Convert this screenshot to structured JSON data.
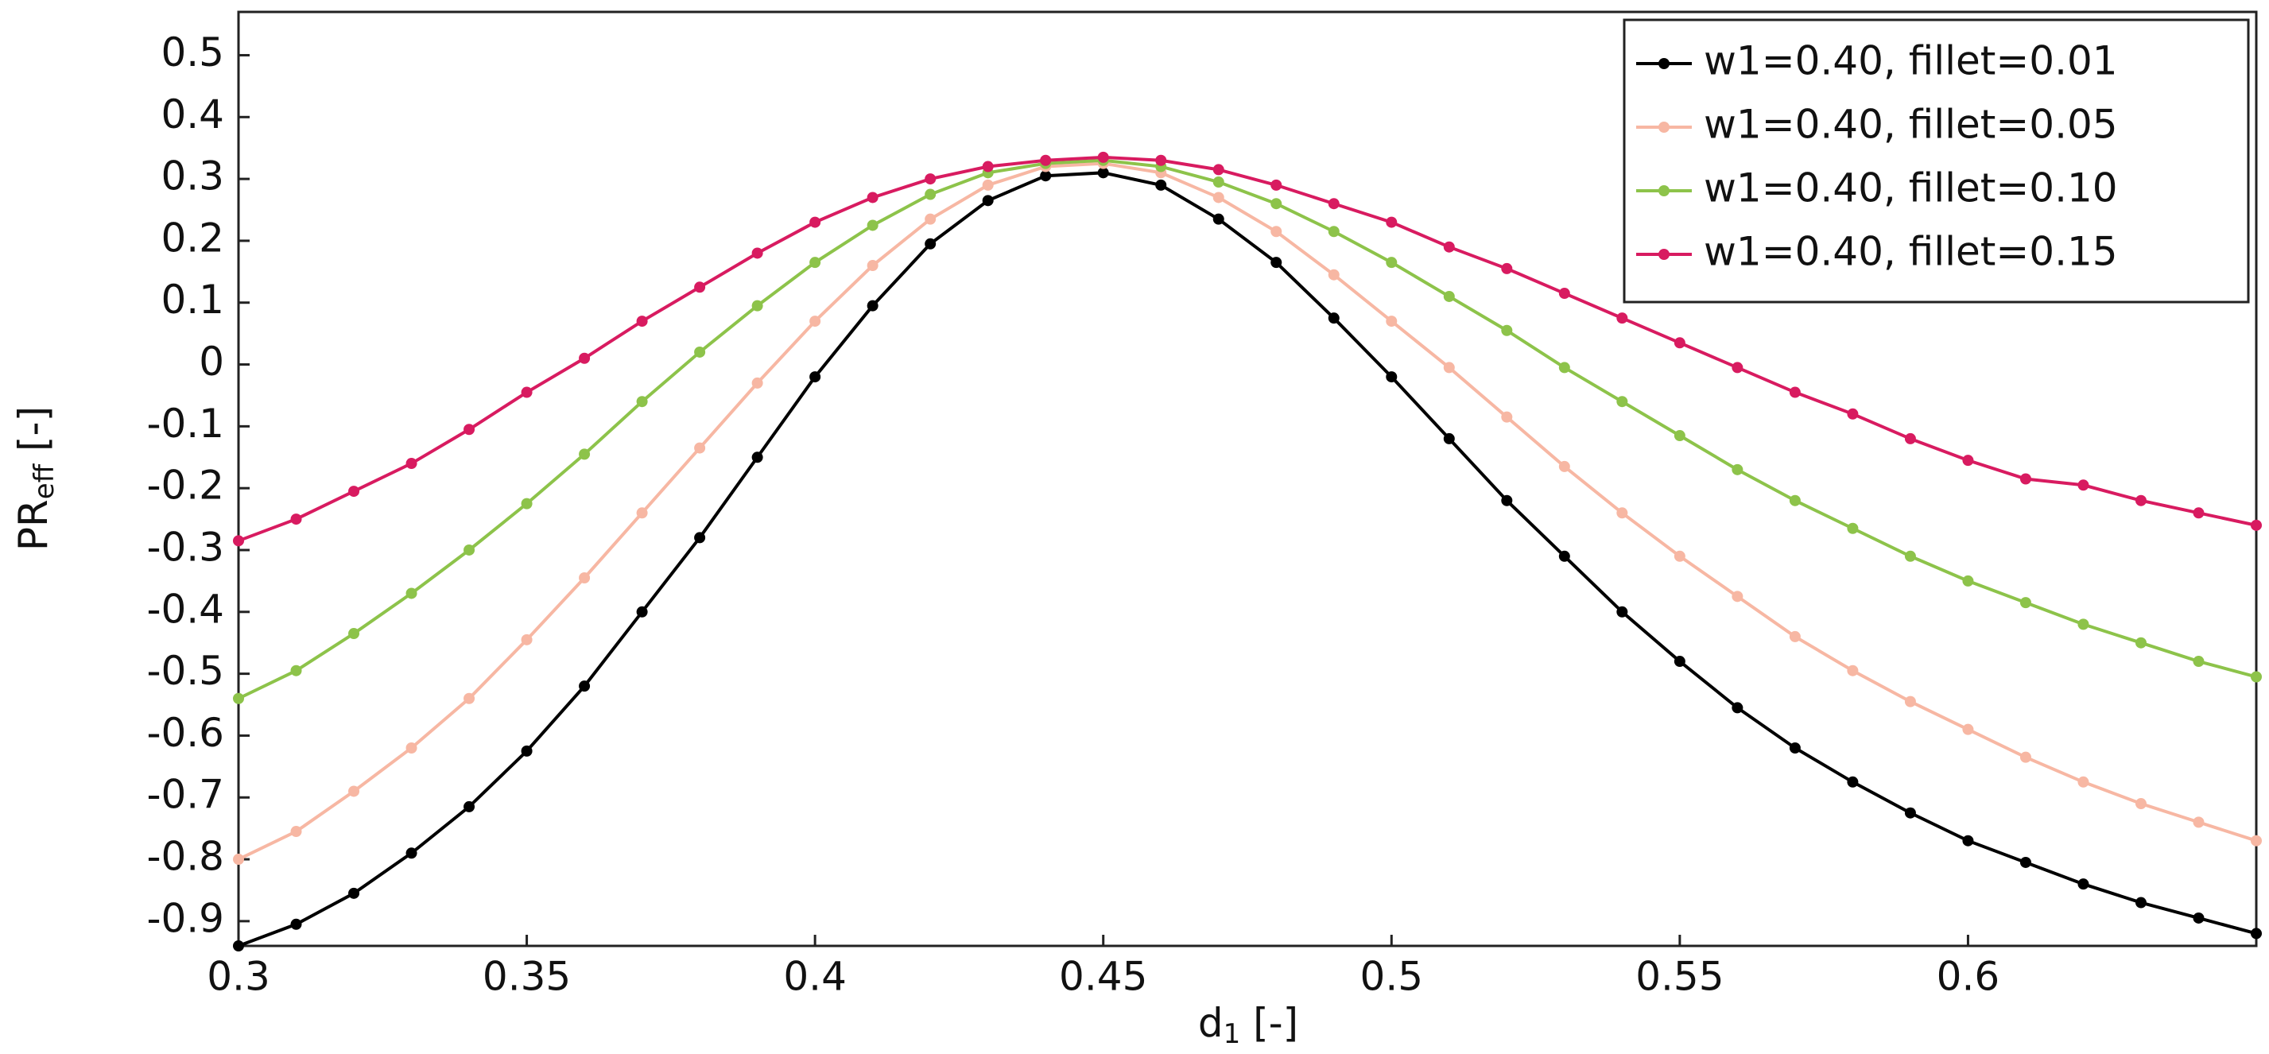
{
  "chart_data": {
    "type": "line",
    "xlabel": {
      "text": "d",
      "sub": "1",
      "unit": " [-]"
    },
    "ylabel": {
      "text": "PR",
      "sub": "eff",
      "unit": " [-]"
    },
    "x": [
      0.3,
      0.31,
      0.32,
      0.33,
      0.34,
      0.35,
      0.36,
      0.37,
      0.38,
      0.39,
      0.4,
      0.41,
      0.42,
      0.43,
      0.44,
      0.45,
      0.46,
      0.47,
      0.48,
      0.49,
      0.5,
      0.51,
      0.52,
      0.53,
      0.54,
      0.55,
      0.56,
      0.57,
      0.58,
      0.59,
      0.6,
      0.61,
      0.62,
      0.63,
      0.64,
      0.65
    ],
    "series": [
      {
        "name": "w1=0.40, fillet=0.01",
        "color": "#000000",
        "values": [
          -0.94,
          -0.905,
          -0.855,
          -0.79,
          -0.715,
          -0.625,
          -0.52,
          -0.4,
          -0.28,
          -0.15,
          -0.02,
          0.095,
          0.195,
          0.265,
          0.305,
          0.31,
          0.29,
          0.235,
          0.165,
          0.075,
          -0.02,
          -0.12,
          -0.22,
          -0.31,
          -0.4,
          -0.48,
          -0.555,
          -0.62,
          -0.675,
          -0.725,
          -0.77,
          -0.805,
          -0.84,
          -0.87,
          -0.895,
          -0.92
        ]
      },
      {
        "name": "w1=0.40, fillet=0.05",
        "color": "#f7b7a3",
        "values": [
          -0.8,
          -0.755,
          -0.69,
          -0.62,
          -0.54,
          -0.445,
          -0.345,
          -0.24,
          -0.135,
          -0.03,
          0.07,
          0.16,
          0.235,
          0.29,
          0.32,
          0.325,
          0.31,
          0.27,
          0.215,
          0.145,
          0.07,
          -0.005,
          -0.085,
          -0.165,
          -0.24,
          -0.31,
          -0.375,
          -0.44,
          -0.495,
          -0.545,
          -0.59,
          -0.635,
          -0.675,
          -0.71,
          -0.74,
          -0.77
        ]
      },
      {
        "name": "w1=0.40, fillet=0.10",
        "color": "#8dc34a",
        "values": [
          -0.54,
          -0.495,
          -0.435,
          -0.37,
          -0.3,
          -0.225,
          -0.145,
          -0.06,
          0.02,
          0.095,
          0.165,
          0.225,
          0.275,
          0.31,
          0.325,
          0.33,
          0.32,
          0.295,
          0.26,
          0.215,
          0.165,
          0.11,
          0.055,
          -0.005,
          -0.06,
          -0.115,
          -0.17,
          -0.22,
          -0.265,
          -0.31,
          -0.35,
          -0.385,
          -0.42,
          -0.45,
          -0.48,
          -0.505
        ]
      },
      {
        "name": "w1=0.40, fillet=0.15",
        "color": "#d81b60",
        "values": [
          -0.285,
          -0.25,
          -0.205,
          -0.16,
          -0.105,
          -0.045,
          0.01,
          0.07,
          0.125,
          0.18,
          0.23,
          0.27,
          0.3,
          0.32,
          0.33,
          0.335,
          0.33,
          0.315,
          0.29,
          0.26,
          0.23,
          0.19,
          0.155,
          0.115,
          0.075,
          0.035,
          -0.005,
          -0.045,
          -0.08,
          -0.12,
          -0.155,
          -0.185,
          -0.195,
          -0.22,
          -0.24,
          -0.26
        ]
      }
    ],
    "xlim": [
      0.3,
      0.65
    ],
    "xticks": [
      0.3,
      0.35,
      0.4,
      0.45,
      0.5,
      0.55,
      0.6
    ],
    "ylim": [
      -0.94,
      0.57
    ],
    "yticks": [
      0.5,
      0.4,
      0.3,
      0.2,
      0.1,
      0,
      -0.1,
      -0.2,
      -0.3,
      -0.4,
      -0.5,
      -0.6,
      -0.7,
      -0.8,
      -0.9
    ],
    "legend": "upper right",
    "grid": false
  }
}
